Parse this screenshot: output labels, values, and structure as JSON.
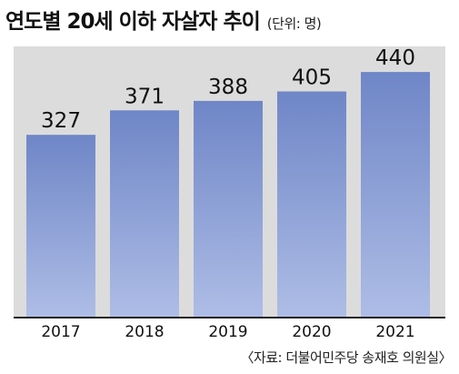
{
  "title": "연도별 20세 이하 자살자 추이",
  "unit_label": "(단위: 명)",
  "source": "〈자료: 더불어민주당 송재호 의원실〉",
  "colors": {
    "bar_top": "#6f86c7",
    "bar_bottom": "#aebde6",
    "background_panel": "#dcdcdc",
    "axis": "#222222"
  },
  "chart_data": {
    "type": "bar",
    "title": "연도별 20세 이하 자살자 추이",
    "categories": [
      "2017",
      "2018",
      "2019",
      "2020",
      "2021"
    ],
    "values": [
      327,
      371,
      388,
      405,
      440
    ],
    "ylim": [
      0,
      486
    ],
    "xlabel": "",
    "ylabel": "",
    "grid": false,
    "legend": "none"
  }
}
